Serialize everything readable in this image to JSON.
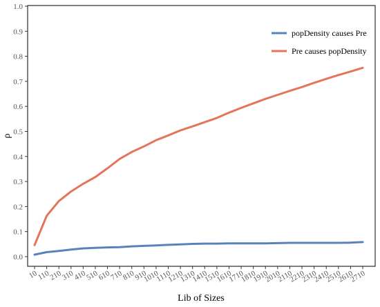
{
  "chart_data": {
    "type": "line",
    "title": "",
    "xlabel": "Lib of Sizes",
    "ylabel": "ρ",
    "x": [
      10,
      110,
      210,
      310,
      410,
      510,
      610,
      710,
      810,
      910,
      1010,
      1110,
      1210,
      1310,
      1410,
      1510,
      1610,
      1710,
      1810,
      1910,
      2010,
      2110,
      2210,
      2310,
      2410,
      2510,
      2610,
      2710
    ],
    "xticks": [
      "10",
      "110",
      "210",
      "310",
      "410",
      "510",
      "610",
      "710",
      "810",
      "910",
      "1010",
      "1110",
      "1210",
      "1310",
      "1410",
      "1510",
      "1610",
      "1710",
      "1810",
      "1910",
      "2010",
      "2110",
      "2210",
      "2310",
      "2410",
      "2510",
      "2610",
      "2710"
    ],
    "yticks": [
      "0.0",
      "0.1",
      "0.2",
      "0.3",
      "0.4",
      "0.5",
      "0.6",
      "0.7",
      "0.8",
      "0.9",
      "1.0"
    ],
    "ylim": [
      0,
      1
    ],
    "xlim": [
      10,
      2710
    ],
    "grid": false,
    "legend_position": "top-right",
    "series": [
      {
        "name": "popDensity causes Pre",
        "color": "#5b82b8",
        "values": [
          0.008,
          0.018,
          0.023,
          0.028,
          0.033,
          0.035,
          0.037,
          0.038,
          0.041,
          0.043,
          0.045,
          0.047,
          0.049,
          0.051,
          0.052,
          0.052,
          0.053,
          0.053,
          0.053,
          0.053,
          0.054,
          0.055,
          0.055,
          0.055,
          0.055,
          0.055,
          0.056,
          0.058
        ]
      },
      {
        "name": "Pre causes popDensity",
        "color": "#e4745a",
        "values": [
          0.046,
          0.163,
          0.222,
          0.26,
          0.291,
          0.318,
          0.353,
          0.39,
          0.418,
          0.44,
          0.465,
          0.484,
          0.504,
          0.52,
          0.537,
          0.554,
          0.575,
          0.594,
          0.612,
          0.63,
          0.646,
          0.662,
          0.677,
          0.694,
          0.71,
          0.725,
          0.739,
          0.754
        ]
      }
    ]
  }
}
